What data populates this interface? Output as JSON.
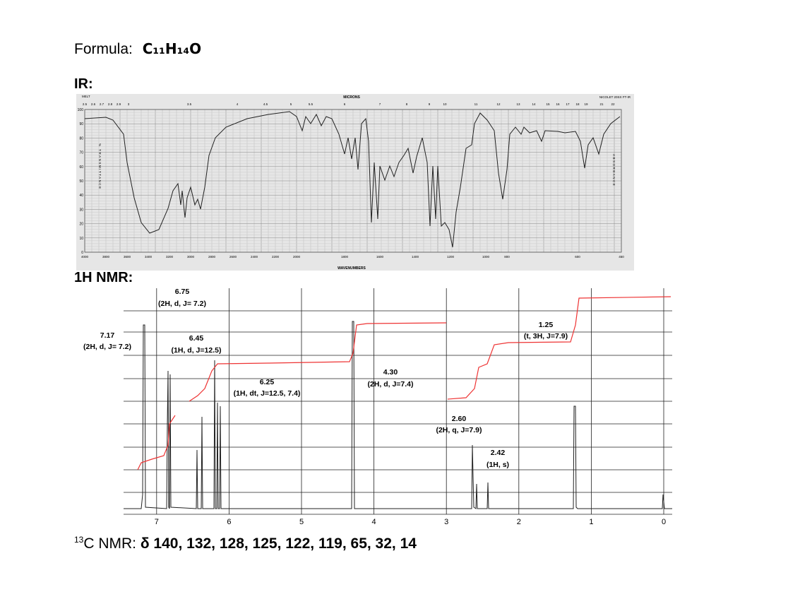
{
  "formula": {
    "label": "Formula:",
    "value": "C₁₁H₁₄O"
  },
  "ir": {
    "label": "IR:",
    "top_title": "MICRONS",
    "bottom_title": "WAVENUMBERS",
    "instrument": "NICOLET 20SX FT-IR",
    "sample": "MELT",
    "y_title": "% TRANSMITTANCE",
    "y2_title": "ABSORBANCE",
    "yticks": [
      0,
      10,
      20,
      30,
      40,
      50,
      60,
      70,
      80,
      90,
      100
    ],
    "micron_ticks": [
      "2.5",
      "2.6",
      "2.7",
      "2.8",
      "2.9",
      "3",
      "3.5",
      "4",
      "4.5",
      "5",
      "5.5",
      "6",
      "7",
      "8",
      "9",
      "10",
      "11",
      "12",
      "13",
      "14",
      "15",
      "16",
      "17",
      "18",
      "19",
      "21",
      "22"
    ],
    "wavenumber_ticks": [
      "4000",
      "3800",
      "3600",
      "3400",
      "3200",
      "3000",
      "2800",
      "2600",
      "2400",
      "2200",
      "2000",
      "1800",
      "1600",
      "1400",
      "1200",
      "1000",
      "800",
      "600",
      "450"
    ]
  },
  "nmr": {
    "label": "1H NMR:",
    "xticks": [
      7,
      6,
      5,
      4,
      3,
      2,
      1,
      0
    ],
    "peaks": [
      {
        "shift": "7.17",
        "detail": "(2H, d, J= 7.2)"
      },
      {
        "shift": "6.75",
        "detail": "(2H, d, J= 7.2)"
      },
      {
        "shift": "6.45",
        "detail": "(1H, d, J=12.5)"
      },
      {
        "shift": "6.25",
        "detail": "(1H, dt, J=12.5, 7.4)"
      },
      {
        "shift": "4.30",
        "detail": "(2H, d, J=7.4)"
      },
      {
        "shift": "2.60",
        "detail": "(2H, q, J=7.9)"
      },
      {
        "shift": "2.42",
        "detail": "(1H, s)"
      },
      {
        "shift": "1.25",
        "detail": "(t, 3H, J=7.9)"
      }
    ]
  },
  "c13": {
    "sup": "13",
    "label": "C NMR: ",
    "values": "δ 140, 132, 128, 125, 122, 119, 65, 32, 14"
  }
}
